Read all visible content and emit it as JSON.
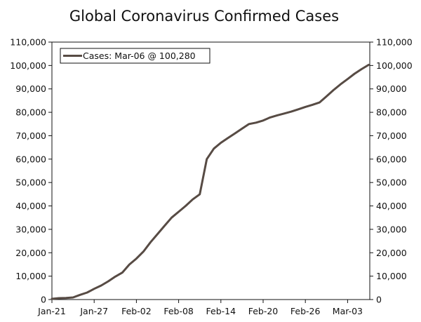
{
  "chart_data": {
    "type": "line",
    "title": "Global Coronavirus Confirmed Cases",
    "xlabel": "",
    "ylabel": "",
    "x_tick_labels": [
      "Jan-21",
      "Jan-27",
      "Feb-02",
      "Feb-08",
      "Feb-14",
      "Feb-20",
      "Feb-26",
      "Mar-03"
    ],
    "y_tick_labels": [
      "0",
      "10,000",
      "20,000",
      "30,000",
      "40,000",
      "50,000",
      "60,000",
      "70,000",
      "80,000",
      "90,000",
      "100,000",
      "110,000"
    ],
    "ylim": [
      0,
      110000
    ],
    "grid": false,
    "legend_position": "top-left",
    "colors": {
      "line": "#574b44"
    },
    "series": [
      {
        "name": "Cases: Mar-06 @ 100,280",
        "x": [
          "2020-01-21",
          "2020-01-22",
          "2020-01-23",
          "2020-01-24",
          "2020-01-25",
          "2020-01-26",
          "2020-01-27",
          "2020-01-28",
          "2020-01-29",
          "2020-01-30",
          "2020-01-31",
          "2020-02-01",
          "2020-02-02",
          "2020-02-03",
          "2020-02-04",
          "2020-02-05",
          "2020-02-06",
          "2020-02-07",
          "2020-02-08",
          "2020-02-09",
          "2020-02-10",
          "2020-02-11",
          "2020-02-12",
          "2020-02-13",
          "2020-02-14",
          "2020-02-15",
          "2020-02-16",
          "2020-02-17",
          "2020-02-18",
          "2020-02-19",
          "2020-02-20",
          "2020-02-21",
          "2020-02-22",
          "2020-02-23",
          "2020-02-24",
          "2020-02-25",
          "2020-02-26",
          "2020-02-27",
          "2020-02-28",
          "2020-02-29",
          "2020-03-01",
          "2020-03-02",
          "2020-03-03",
          "2020-03-04",
          "2020-03-05",
          "2020-03-06"
        ],
        "values": [
          300,
          600,
          650,
          900,
          2000,
          3000,
          4600,
          6000,
          7800,
          9800,
          11500,
          15000,
          17500,
          20500,
          24500,
          28000,
          31500,
          35000,
          37500,
          40000,
          42800,
          45000,
          60000,
          64500,
          67000,
          69000,
          71000,
          73000,
          75000,
          75600,
          76500,
          77800,
          78700,
          79500,
          80300,
          81300,
          82300,
          83200,
          84200,
          86800,
          89500,
          92000,
          94200,
          96500,
          98500,
          100280
        ]
      }
    ]
  }
}
